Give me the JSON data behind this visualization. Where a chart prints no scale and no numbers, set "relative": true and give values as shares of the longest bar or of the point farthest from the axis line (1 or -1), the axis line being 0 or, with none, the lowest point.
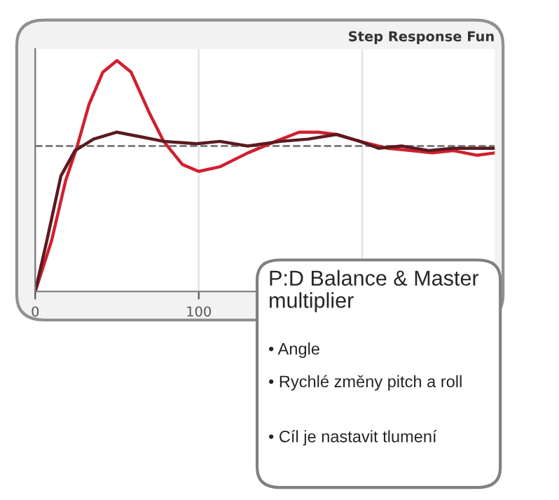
{
  "chart_data": {
    "type": "line",
    "title": "Step Response Fun",
    "relative": true,
    "x": [
      0,
      10,
      18.6,
      25.7,
      32.9,
      41.4,
      50,
      58.6,
      70,
      78.6,
      90,
      100,
      112.9,
      130,
      147,
      161.4,
      172.9,
      184.3,
      198.6,
      215.7,
      230,
      242.9,
      255.7,
      270,
      281
    ],
    "xlim": [
      0,
      281
    ],
    "xticks": [
      0,
      100,
      {
        "value": 200,
        "label": null
      }
    ],
    "grid": "x",
    "series": [
      {
        "color": "#d0202f",
        "values": [
          0,
          0.22,
          0.48,
          0.63,
          0.81,
          0.95,
          1,
          0.95,
          0.77,
          0.65,
          0.55,
          0.52,
          0.54,
          0.6,
          0.65,
          0.69,
          0.69,
          0.68,
          0.65,
          0.62,
          0.61,
          0.6,
          0.61,
          0.59,
          0.6
        ]
      },
      {
        "color": "#5a1a20",
        "x": [
          0,
          7.1,
          15.7,
          24.3,
          35.7,
          50,
          64.3,
          78.6,
          98.6,
          112.9,
          130,
          150,
          167,
          184.3,
          198.6,
          210,
          224,
          241,
          255.7,
          281
        ],
        "values": [
          0,
          0.22,
          0.5,
          0.61,
          0.66,
          0.69,
          0.67,
          0.65,
          0.64,
          0.65,
          0.63,
          0.65,
          0.66,
          0.68,
          0.65,
          0.62,
          0.63,
          0.61,
          0.62,
          0.62
        ]
      }
    ],
    "ref_lines": [
      {
        "axis": "y",
        "value": 0.63,
        "color": "#808080",
        "line_style": "dashed"
      }
    ],
    "annotations": [
      "P:D Balance & Master multiplier",
      "• Angle",
      "• Rychlé změny pitch a roll",
      "• Cíl je nastavit tlumení"
    ]
  }
}
